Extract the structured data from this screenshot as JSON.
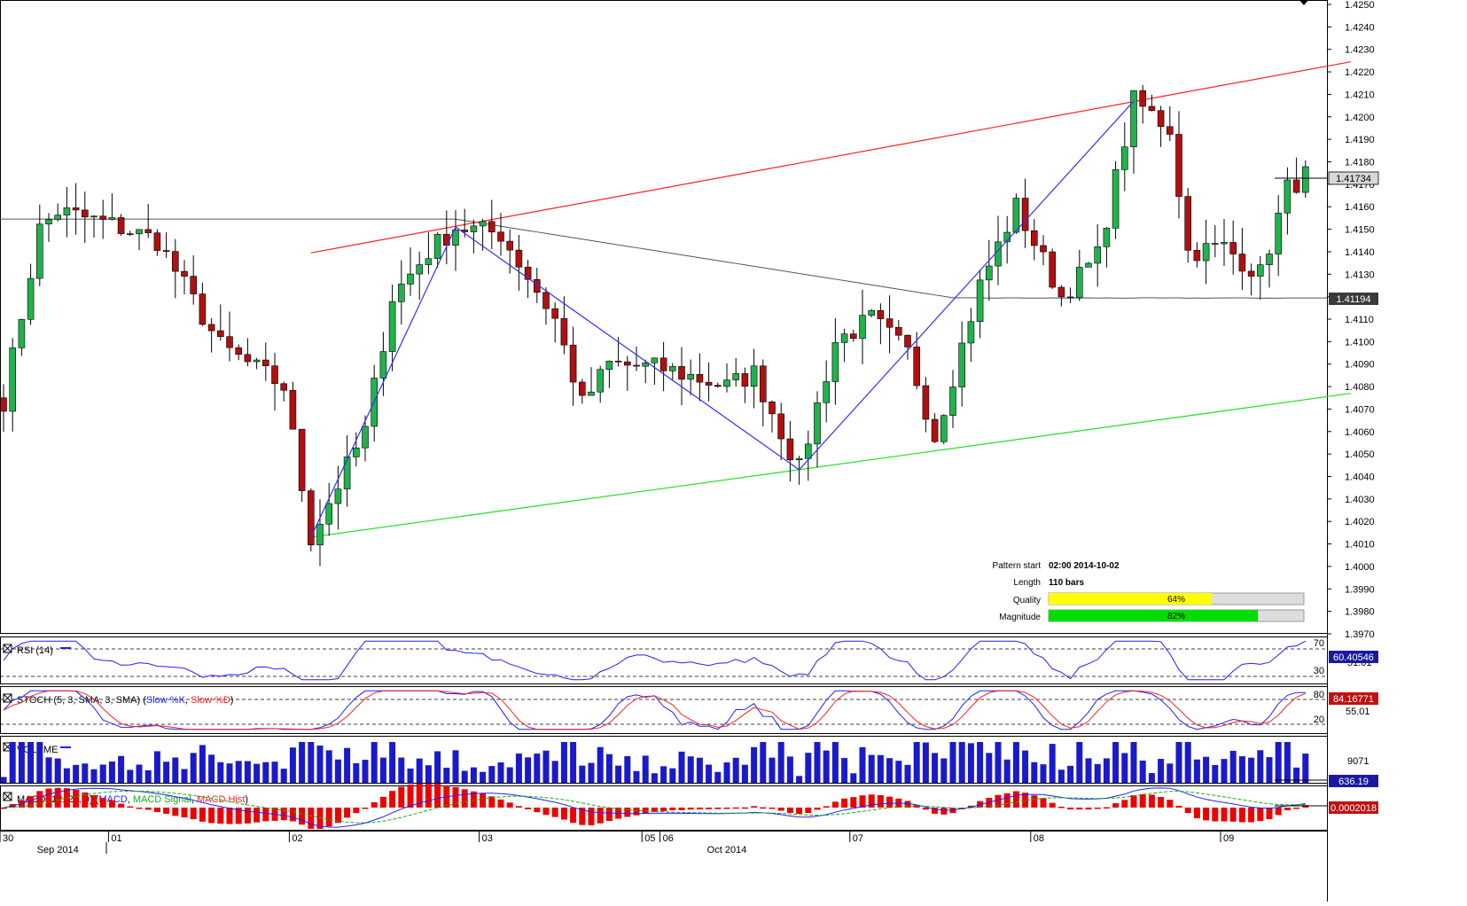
{
  "chart_data": {
    "type": "candlestick",
    "title": "",
    "main": {
      "ylim": [
        1.397,
        1.425
      ],
      "yticks": [
        "1.4250",
        "1.4240",
        "1.4230",
        "1.4220",
        "1.4210",
        "1.4200",
        "1.4190",
        "1.4180",
        "1.4170",
        "1.4160",
        "1.4150",
        "1.4140",
        "1.4130",
        "1.4120",
        "1.4110",
        "1.4100",
        "1.4090",
        "1.4080",
        "1.4070",
        "1.4060",
        "1.4050",
        "1.4040",
        "1.4030",
        "1.4020",
        "1.4010",
        "1.4000",
        "1.3990",
        "1.3980",
        "1.3970"
      ],
      "price_label": "1.41734",
      "price_value": 1.41734,
      "ma_label": "1.41194",
      "ma_value": 1.41194,
      "resistance_line": [
        [
          34,
          1.41395
        ],
        [
          149,
          1.42245
        ]
      ],
      "support_line": [
        [
          34,
          1.4013
        ],
        [
          149,
          1.4077
        ]
      ],
      "zigzag": [
        [
          34,
          1.4013
        ],
        [
          50,
          1.4151
        ],
        [
          88,
          1.4043
        ],
        [
          125,
          1.4207
        ]
      ],
      "bars_count": 145
    },
    "pattern_info": {
      "start_label": "Pattern start",
      "start_value": "02:00 2014-10-02",
      "length_label": "Length",
      "length_value": "110 bars",
      "quality_label": "Quality",
      "quality_pct": 64,
      "quality_text": "64%",
      "magnitude_label": "Magnitude",
      "magnitude_pct": 82,
      "magnitude_text": "82%"
    },
    "rsi": {
      "label": "RSI (14)",
      "upper": "70",
      "lower": "30",
      "mid": "51.01",
      "current": "60.40546",
      "ylim": [
        0,
        100
      ]
    },
    "stoch": {
      "label_prefix": "STOCH (5, 3, SMA, 3, SMA)",
      "k_label": "Slow %K",
      "d_label": "Slow %D",
      "upper": "80",
      "lower": "20",
      "mid": "55.01",
      "current": "84.16771",
      "ylim": [
        0,
        100
      ]
    },
    "volume": {
      "label": "VOLUME",
      "tick": "9071",
      "current": "636.19"
    },
    "macd": {
      "label_prefix": "MACD (12, 26, 9)",
      "macd_label": "MACD",
      "signal_label": "MACD Signal",
      "hist_label": "MACD Hist",
      "current": "0.0002018"
    },
    "xaxis": {
      "ticks": [
        {
          "label": "30",
          "bar": 0
        },
        {
          "label": "01",
          "bar": 12
        },
        {
          "label": "02",
          "bar": 32
        },
        {
          "label": "03",
          "bar": 53
        },
        {
          "label": "05",
          "bar": 71
        },
        {
          "label": "06",
          "bar": 73
        },
        {
          "label": "07",
          "bar": 94
        },
        {
          "label": "08",
          "bar": 114
        },
        {
          "label": "09",
          "bar": 135
        }
      ],
      "months": [
        {
          "label": "Sep 2014",
          "bar": 6
        },
        {
          "label": "Oct 2014",
          "bar": 80
        }
      ]
    },
    "colors": {
      "up": "#22b14c",
      "down": "#b01010",
      "resistance": "#ff2020",
      "support": "#22dd22",
      "zigzag": "#3030ff",
      "ma": "#555555",
      "quality_fill": "#ffff00",
      "magnitude_fill": "#00dd00"
    }
  }
}
